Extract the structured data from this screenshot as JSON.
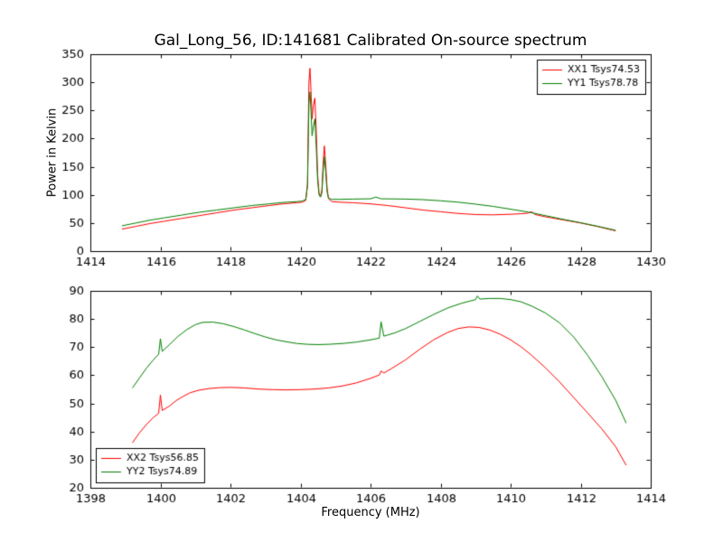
{
  "figure": {
    "title": "Gal_Long_56, ID:141681 Calibrated On-source spectrum",
    "background": "#ffffff",
    "text_color": "#000000"
  },
  "chart_data": [
    {
      "type": "line",
      "ylabel": "Power in Kelvin",
      "xlabel": "",
      "xlim": [
        1414,
        1430
      ],
      "ylim": [
        0,
        350
      ],
      "xticks": [
        1414,
        1416,
        1418,
        1420,
        1422,
        1424,
        1426,
        1428,
        1430
      ],
      "yticks": [
        0,
        50,
        100,
        150,
        200,
        250,
        300,
        350
      ],
      "axes_rect": [
        100,
        60,
        620,
        218
      ],
      "grid": false,
      "legend": {
        "position": "upper right"
      },
      "series": [
        {
          "name": "XX1 Tsys74.53",
          "color": "#ff0000",
          "points": [
            [
              1414.9,
              39
            ],
            [
              1415.3,
              44
            ],
            [
              1415.7,
              49
            ],
            [
              1416.1,
              53
            ],
            [
              1416.6,
              58
            ],
            [
              1417.1,
              63
            ],
            [
              1417.6,
              68
            ],
            [
              1418.1,
              73
            ],
            [
              1418.6,
              77
            ],
            [
              1419.1,
              81
            ],
            [
              1419.5,
              84
            ],
            [
              1419.9,
              86
            ],
            [
              1420.05,
              87
            ],
            [
              1420.15,
              90
            ],
            [
              1420.2,
              120
            ],
            [
              1420.24,
              300
            ],
            [
              1420.27,
              325
            ],
            [
              1420.3,
              285
            ],
            [
              1420.33,
              235
            ],
            [
              1420.37,
              260
            ],
            [
              1420.41,
              272
            ],
            [
              1420.45,
              215
            ],
            [
              1420.49,
              135
            ],
            [
              1420.53,
              103
            ],
            [
              1420.57,
              97
            ],
            [
              1420.61,
              108
            ],
            [
              1420.65,
              160
            ],
            [
              1420.68,
              187
            ],
            [
              1420.72,
              155
            ],
            [
              1420.76,
              112
            ],
            [
              1420.8,
              93
            ],
            [
              1420.9,
              88
            ],
            [
              1421.1,
              87
            ],
            [
              1421.5,
              86
            ],
            [
              1422.0,
              84
            ],
            [
              1422.5,
              81
            ],
            [
              1423.0,
              77
            ],
            [
              1423.5,
              73
            ],
            [
              1424.0,
              70
            ],
            [
              1424.5,
              67
            ],
            [
              1425.0,
              65
            ],
            [
              1425.5,
              64.5
            ],
            [
              1426.0,
              65.5
            ],
            [
              1426.3,
              66.5
            ],
            [
              1426.5,
              67.5
            ],
            [
              1426.6,
              70
            ],
            [
              1426.7,
              65
            ],
            [
              1427.0,
              61
            ],
            [
              1427.5,
              55.5
            ],
            [
              1428.0,
              50
            ],
            [
              1428.5,
              43.5
            ],
            [
              1429.0,
              36
            ]
          ]
        },
        {
          "name": "YY1 Tsys78.78",
          "color": "#008000",
          "points": [
            [
              1414.9,
              45
            ],
            [
              1415.3,
              50
            ],
            [
              1415.7,
              55
            ],
            [
              1416.1,
              59
            ],
            [
              1416.6,
              64
            ],
            [
              1417.1,
              69
            ],
            [
              1417.6,
              73
            ],
            [
              1418.1,
              77
            ],
            [
              1418.6,
              81
            ],
            [
              1419.1,
              84
            ],
            [
              1419.5,
              86.5
            ],
            [
              1419.9,
              88
            ],
            [
              1420.05,
              89
            ],
            [
              1420.15,
              92
            ],
            [
              1420.2,
              115
            ],
            [
              1420.24,
              262
            ],
            [
              1420.27,
              283
            ],
            [
              1420.3,
              248
            ],
            [
              1420.33,
              205
            ],
            [
              1420.37,
              222
            ],
            [
              1420.41,
              235
            ],
            [
              1420.45,
              185
            ],
            [
              1420.49,
              125
            ],
            [
              1420.53,
              100
            ],
            [
              1420.57,
              96
            ],
            [
              1420.61,
              103
            ],
            [
              1420.65,
              145
            ],
            [
              1420.68,
              168
            ],
            [
              1420.72,
              140
            ],
            [
              1420.76,
              105
            ],
            [
              1420.8,
              94
            ],
            [
              1420.9,
              92
            ],
            [
              1421.1,
              92
            ],
            [
              1421.5,
              92.5
            ],
            [
              1422.0,
              93
            ],
            [
              1422.15,
              96
            ],
            [
              1422.3,
              93
            ],
            [
              1423.0,
              92.5
            ],
            [
              1423.5,
              91.5
            ],
            [
              1424.0,
              89.5
            ],
            [
              1424.5,
              87
            ],
            [
              1425.0,
              83.5
            ],
            [
              1425.5,
              79.5
            ],
            [
              1426.0,
              74.5
            ],
            [
              1426.5,
              69.5
            ],
            [
              1427.0,
              63
            ],
            [
              1427.5,
              56.5
            ],
            [
              1428.0,
              50.5
            ],
            [
              1428.5,
              44
            ],
            [
              1429.0,
              37
            ]
          ]
        }
      ]
    },
    {
      "type": "line",
      "ylabel": "",
      "xlabel": "Frequency (MHz)",
      "xlim": [
        1398,
        1414
      ],
      "ylim": [
        20,
        90
      ],
      "xticks": [
        1398,
        1400,
        1402,
        1404,
        1406,
        1408,
        1410,
        1412,
        1414
      ],
      "yticks": [
        20,
        30,
        40,
        50,
        60,
        70,
        80,
        90
      ],
      "axes_rect": [
        100,
        322,
        620,
        218
      ],
      "grid": false,
      "legend": {
        "position": "lower left"
      },
      "series": [
        {
          "name": "XX2 Tsys56.85",
          "color": "#ff0000",
          "points": [
            [
              1399.2,
              36
            ],
            [
              1399.4,
              39.5
            ],
            [
              1399.6,
              42.5
            ],
            [
              1399.8,
              45
            ],
            [
              1399.95,
              46.5
            ],
            [
              1400.0,
              53
            ],
            [
              1400.05,
              47.5
            ],
            [
              1400.25,
              49
            ],
            [
              1400.45,
              51
            ],
            [
              1400.65,
              52.5
            ],
            [
              1400.85,
              53.8
            ],
            [
              1401.1,
              54.7
            ],
            [
              1401.4,
              55.3
            ],
            [
              1401.7,
              55.6
            ],
            [
              1402.0,
              55.7
            ],
            [
              1402.4,
              55.5
            ],
            [
              1402.8,
              55.1
            ],
            [
              1403.2,
              54.9
            ],
            [
              1403.6,
              54.8
            ],
            [
              1404.0,
              54.9
            ],
            [
              1404.4,
              55.1
            ],
            [
              1404.8,
              55.5
            ],
            [
              1405.2,
              56.2
            ],
            [
              1405.6,
              57.3
            ],
            [
              1406.0,
              58.9
            ],
            [
              1406.25,
              60.1
            ],
            [
              1406.3,
              61.5
            ],
            [
              1406.38,
              60.8
            ],
            [
              1406.6,
              62.4
            ],
            [
              1407.0,
              65.5
            ],
            [
              1407.4,
              69.2
            ],
            [
              1407.8,
              72.6
            ],
            [
              1408.2,
              75.2
            ],
            [
              1408.5,
              76.6
            ],
            [
              1408.8,
              77.2
            ],
            [
              1409.1,
              77.0
            ],
            [
              1409.4,
              76.1
            ],
            [
              1409.7,
              74.6
            ],
            [
              1410.0,
              72.6
            ],
            [
              1410.3,
              70.1
            ],
            [
              1410.6,
              67.1
            ],
            [
              1411.0,
              62.6
            ],
            [
              1411.4,
              57.6
            ],
            [
              1411.8,
              52.1
            ],
            [
              1412.2,
              46.6
            ],
            [
              1412.6,
              41.0
            ],
            [
              1413.0,
              34.6
            ],
            [
              1413.3,
              28
            ]
          ]
        },
        {
          "name": "YY2 Tsys74.89",
          "color": "#008000",
          "points": [
            [
              1399.2,
              55.5
            ],
            [
              1399.4,
              59
            ],
            [
              1399.6,
              62.5
            ],
            [
              1399.8,
              65.5
            ],
            [
              1399.95,
              67.5
            ],
            [
              1400.0,
              73
            ],
            [
              1400.05,
              68.5
            ],
            [
              1400.25,
              70.8
            ],
            [
              1400.5,
              73.8
            ],
            [
              1400.75,
              76.2
            ],
            [
              1401.0,
              78.0
            ],
            [
              1401.2,
              78.8
            ],
            [
              1401.5,
              78.9
            ],
            [
              1401.8,
              78.3
            ],
            [
              1402.1,
              77.3
            ],
            [
              1402.4,
              76.1
            ],
            [
              1402.7,
              74.8
            ],
            [
              1403.0,
              73.6
            ],
            [
              1403.3,
              72.6
            ],
            [
              1403.6,
              71.9
            ],
            [
              1403.9,
              71.3
            ],
            [
              1404.2,
              71.0
            ],
            [
              1404.5,
              70.9
            ],
            [
              1404.8,
              71.0
            ],
            [
              1405.2,
              71.3
            ],
            [
              1405.6,
              71.8
            ],
            [
              1406.0,
              72.6
            ],
            [
              1406.25,
              73.2
            ],
            [
              1406.3,
              79
            ],
            [
              1406.38,
              73.9
            ],
            [
              1406.7,
              75.1
            ],
            [
              1407.0,
              76.6
            ],
            [
              1407.4,
              79.1
            ],
            [
              1407.8,
              81.6
            ],
            [
              1408.2,
              83.9
            ],
            [
              1408.6,
              85.6
            ],
            [
              1409.0,
              86.9
            ],
            [
              1409.05,
              88.2
            ],
            [
              1409.12,
              87.1
            ],
            [
              1409.4,
              87.3
            ],
            [
              1409.7,
              87.3
            ],
            [
              1410.0,
              86.9
            ],
            [
              1410.3,
              86.1
            ],
            [
              1410.6,
              84.6
            ],
            [
              1411.0,
              82.1
            ],
            [
              1411.4,
              78.6
            ],
            [
              1411.8,
              73.6
            ],
            [
              1412.2,
              67.1
            ],
            [
              1412.6,
              59.6
            ],
            [
              1413.0,
              51.1
            ],
            [
              1413.3,
              43
            ]
          ]
        }
      ]
    }
  ]
}
